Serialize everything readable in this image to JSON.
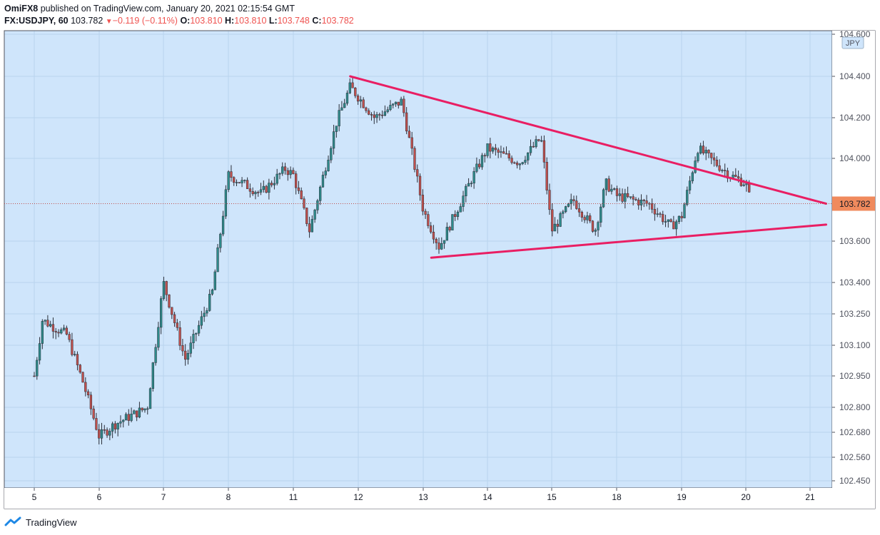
{
  "header": {
    "author": "OmiFX8",
    "published_text": "published on TradingView.com, January 20, 2021 02:15:54 GMT",
    "symbol": "FX:USDJPY, 60",
    "last": "103.782",
    "change_arrow": "▼",
    "change": "−0.119 (−0.11%)",
    "o_label": "O:",
    "o_value": "103.810",
    "h_label": "H:",
    "h_value": "103.810",
    "l_label": "L:",
    "l_value": "103.748",
    "c_label": "C:",
    "c_value": "103.782"
  },
  "footer": {
    "brand": "TradingView"
  },
  "colors": {
    "background": "#cfe5fb",
    "up": "#2e8b8b",
    "down": "#c0504d",
    "wick": "#2a2e39",
    "trendline": "#e91e63",
    "price_label": "#f08a5d",
    "grid": "#b9d3ee"
  },
  "chart_data": {
    "type": "candlestick",
    "symbol": "FX:USDJPY",
    "interval": "60",
    "currency_label": "JPY",
    "last_price_label": "103.782",
    "y_ticks": [
      "104.600",
      "104.400",
      "104.200",
      "104.000",
      "103.600",
      "103.400",
      "103.250",
      "103.100",
      "102.950",
      "102.800",
      "102.680",
      "102.560",
      "102.450"
    ],
    "x_ticks": [
      "5",
      "6",
      "7",
      "8",
      "11",
      "12",
      "13",
      "14",
      "15",
      "18",
      "19",
      "20",
      "21"
    ],
    "approx_path": [
      {
        "x": "Jan 5 00:00",
        "y": 102.95
      },
      {
        "x": "Jan 5 03:00",
        "y": 103.22
      },
      {
        "x": "Jan 5 12:00",
        "y": 103.15
      },
      {
        "x": "Jan 5 18:00",
        "y": 102.92
      },
      {
        "x": "Jan 6 00:00",
        "y": 102.66
      },
      {
        "x": "Jan 6 06:00",
        "y": 102.72
      },
      {
        "x": "Jan 6 18:00",
        "y": 102.8
      },
      {
        "x": "Jan 7 00:00",
        "y": 103.4
      },
      {
        "x": "Jan 7 08:00",
        "y": 103.03
      },
      {
        "x": "Jan 7 18:00",
        "y": 103.35
      },
      {
        "x": "Jan 8 00:00",
        "y": 103.92
      },
      {
        "x": "Jan 8 12:00",
        "y": 103.83
      },
      {
        "x": "Jan 8 21:00",
        "y": 103.95
      },
      {
        "x": "Jan 11 00:00",
        "y": 103.92
      },
      {
        "x": "Jan 11 06:00",
        "y": 103.65
      },
      {
        "x": "Jan 11 16:00",
        "y": 104.18
      },
      {
        "x": "Jan 11 21:00",
        "y": 104.35
      },
      {
        "x": "Jan 12 06:00",
        "y": 104.2
      },
      {
        "x": "Jan 12 16:00",
        "y": 104.28
      },
      {
        "x": "Jan 13 00:00",
        "y": 103.75
      },
      {
        "x": "Jan 13 06:00",
        "y": 103.57
      },
      {
        "x": "Jan 13 18:00",
        "y": 103.9
      },
      {
        "x": "Jan 14 00:00",
        "y": 104.05
      },
      {
        "x": "Jan 14 12:00",
        "y": 103.98
      },
      {
        "x": "Jan 14 20:00",
        "y": 104.1
      },
      {
        "x": "Jan 15 00:00",
        "y": 103.65
      },
      {
        "x": "Jan 15 08:00",
        "y": 103.8
      },
      {
        "x": "Jan 15 16:00",
        "y": 103.65
      },
      {
        "x": "Jan 15 20:00",
        "y": 103.88
      },
      {
        "x": "Jan 18 00:00",
        "y": 103.82
      },
      {
        "x": "Jan 18 12:00",
        "y": 103.78
      },
      {
        "x": "Jan 18 20:00",
        "y": 103.67
      },
      {
        "x": "Jan 19 00:00",
        "y": 103.72
      },
      {
        "x": "Jan 19 06:00",
        "y": 104.05
      },
      {
        "x": "Jan 19 18:00",
        "y": 103.92
      },
      {
        "x": "Jan 20 00:00",
        "y": 103.88
      },
      {
        "x": "Jan 20 02:00",
        "y": 103.782
      }
    ],
    "trendlines": [
      {
        "label": "upper",
        "start": {
          "x": "Jan 11 21:00",
          "y": 104.4
        },
        "end": {
          "x": "Jan 21 06:00",
          "y": 103.782
        }
      },
      {
        "label": "lower",
        "start": {
          "x": "Jan 13 03:00",
          "y": 103.52
        },
        "end": {
          "x": "Jan 21 06:00",
          "y": 103.68
        }
      }
    ]
  }
}
